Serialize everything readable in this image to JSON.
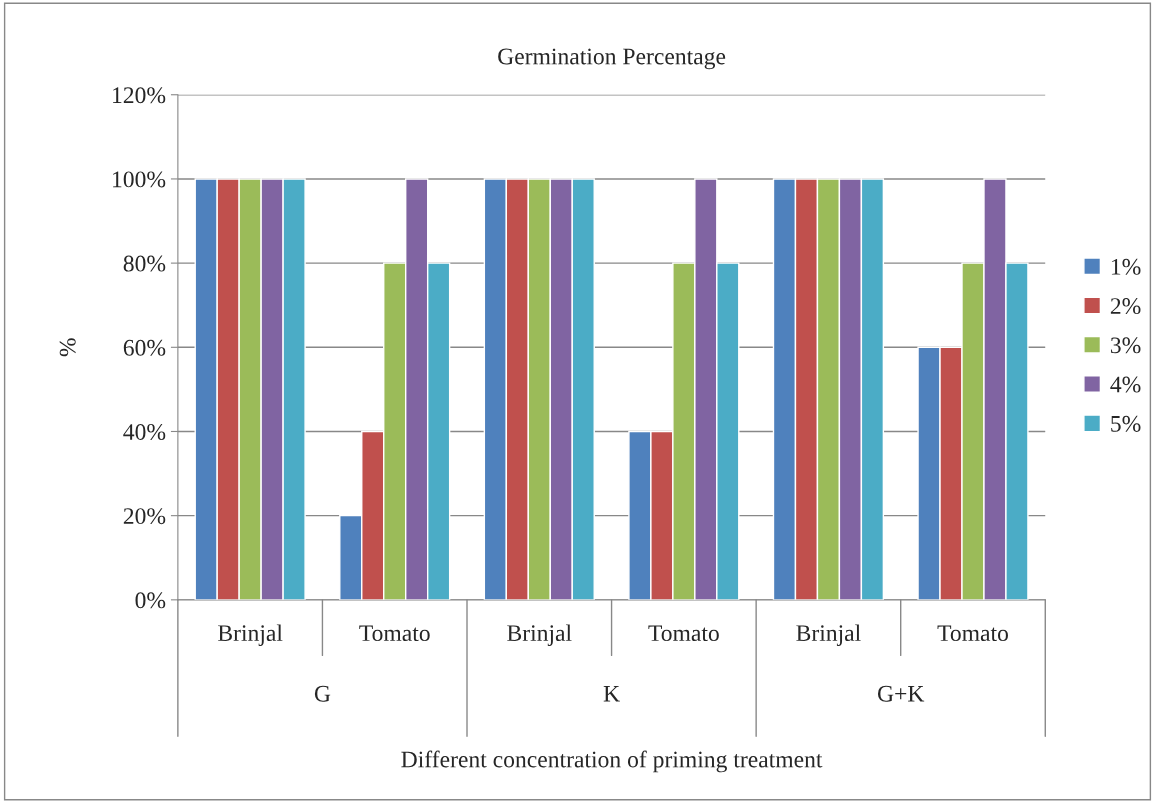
{
  "chart_data": {
    "type": "bar",
    "title": "Germination Percentage",
    "xlabel": "Different concentration of priming treatment",
    "ylabel": "%",
    "categories": [
      "Brinjal",
      "Tomato",
      "Brinjal",
      "Tomato",
      "Brinjal",
      "Tomato"
    ],
    "annotations": [
      "G",
      "K",
      "G+K"
    ],
    "series": [
      {
        "name": "1%",
        "color": "#4f81bd",
        "values": [
          100,
          20,
          100,
          40,
          100,
          60
        ]
      },
      {
        "name": "2%",
        "color": "#c0504d",
        "values": [
          100,
          40,
          100,
          40,
          100,
          60
        ]
      },
      {
        "name": "3%",
        "color": "#9bbb59",
        "values": [
          100,
          80,
          100,
          80,
          100,
          80
        ]
      },
      {
        "name": "4%",
        "color": "#8064a2",
        "values": [
          100,
          100,
          100,
          100,
          100,
          100
        ]
      },
      {
        "name": "5%",
        "color": "#4bacc6",
        "values": [
          100,
          80,
          100,
          80,
          100,
          80
        ]
      }
    ],
    "ylim": [
      0,
      120
    ],
    "yticks": [
      {
        "value": 0,
        "label": "0%"
      },
      {
        "value": 20,
        "label": "20%"
      },
      {
        "value": 40,
        "label": "40%"
      },
      {
        "value": 60,
        "label": "60%"
      },
      {
        "value": 80,
        "label": "80%"
      },
      {
        "value": 100,
        "label": "100%"
      },
      {
        "value": 120,
        "label": "120%"
      }
    ],
    "grid": "y",
    "legend": "right"
  }
}
